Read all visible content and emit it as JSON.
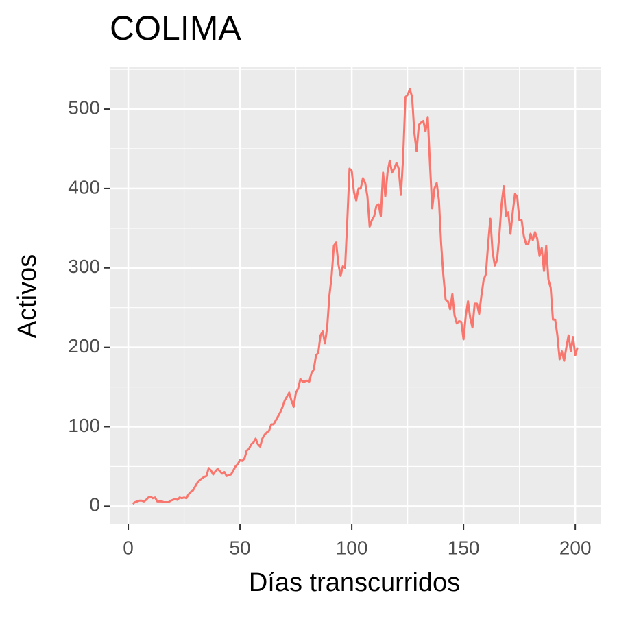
{
  "chart_data": {
    "type": "line",
    "title": "COLIMA",
    "x_label": "Días transcurridos",
    "y_label": "Activos",
    "xlim": [
      -8.3,
      211.3
    ],
    "ylim": [
      -23,
      552.7
    ],
    "xticks": [
      0,
      50,
      100,
      150,
      200
    ],
    "yticks": [
      0,
      100,
      200,
      300,
      400,
      500
    ],
    "xminor": [
      25,
      75,
      125,
      175
    ],
    "yminor": [
      50,
      150,
      250,
      350,
      450,
      550
    ],
    "grid": true,
    "panel_color": "#ebebeb",
    "x": [
      2,
      3,
      4,
      5,
      6,
      7,
      8,
      9,
      10,
      11,
      12,
      13,
      14,
      15,
      16,
      17,
      18,
      19,
      20,
      21,
      22,
      23,
      24,
      25,
      26,
      27,
      28,
      29,
      30,
      31,
      32,
      33,
      34,
      35,
      36,
      37,
      38,
      39,
      40,
      41,
      42,
      43,
      44,
      45,
      46,
      47,
      48,
      49,
      50,
      51,
      52,
      53,
      54,
      55,
      56,
      57,
      58,
      59,
      60,
      61,
      62,
      63,
      64,
      65,
      66,
      67,
      68,
      69,
      70,
      71,
      72,
      73,
      74,
      75,
      76,
      77,
      78,
      79,
      80,
      81,
      82,
      83,
      84,
      85,
      86,
      87,
      88,
      89,
      90,
      91,
      92,
      93,
      94,
      95,
      96,
      97,
      98,
      99,
      100,
      101,
      102,
      103,
      104,
      105,
      106,
      107,
      108,
      109,
      110,
      111,
      112,
      113,
      114,
      115,
      116,
      117,
      118,
      119,
      120,
      121,
      122,
      123,
      124,
      125,
      126,
      127,
      128,
      129,
      130,
      131,
      132,
      133,
      134,
      135,
      136,
      137,
      138,
      139,
      140,
      141,
      142,
      143,
      144,
      145,
      146,
      147,
      148,
      149,
      150,
      151,
      152,
      153,
      154,
      155,
      156,
      157,
      158,
      159,
      160,
      161,
      162,
      163,
      164,
      165,
      166,
      167,
      168,
      169,
      170,
      171,
      172,
      173,
      174,
      175,
      176,
      177,
      178,
      179,
      180,
      181,
      182,
      183,
      184,
      185,
      186,
      187,
      188,
      189,
      190,
      191,
      192,
      193,
      194,
      195,
      196,
      197,
      198,
      199,
      200,
      201
    ],
    "series": [
      {
        "name": "COLIMA",
        "color": "#f8766d",
        "values": [
          3,
          5,
          6,
          7,
          7,
          6,
          8,
          11,
          12,
          10,
          11,
          6,
          6,
          6,
          5,
          5,
          5,
          7,
          8,
          9,
          8,
          11,
          10,
          11,
          10,
          15,
          18,
          20,
          25,
          30,
          33,
          35,
          37,
          38,
          48,
          45,
          40,
          44,
          47,
          44,
          41,
          43,
          38,
          39,
          40,
          45,
          50,
          53,
          58,
          57,
          60,
          70,
          72,
          78,
          80,
          85,
          78,
          75,
          85,
          90,
          93,
          95,
          103,
          103,
          108,
          113,
          118,
          125,
          133,
          138,
          143,
          133,
          125,
          143,
          148,
          160,
          157,
          157,
          158,
          157,
          168,
          172,
          190,
          193,
          215,
          220,
          205,
          225,
          265,
          290,
          328,
          332,
          305,
          290,
          302,
          300,
          360,
          425,
          422,
          395,
          385,
          400,
          400,
          413,
          407,
          390,
          352,
          360,
          365,
          378,
          380,
          365,
          420,
          390,
          420,
          435,
          420,
          425,
          432,
          425,
          392,
          440,
          515,
          518,
          525,
          515,
          470,
          447,
          480,
          483,
          485,
          472,
          490,
          430,
          375,
          400,
          407,
          385,
          330,
          290,
          260,
          258,
          248,
          267,
          240,
          230,
          233,
          232,
          210,
          240,
          258,
          237,
          225,
          255,
          255,
          242,
          265,
          285,
          292,
          330,
          362,
          320,
          303,
          310,
          340,
          380,
          403,
          365,
          370,
          343,
          370,
          393,
          390,
          360,
          360,
          340,
          330,
          330,
          343,
          335,
          345,
          337,
          315,
          325,
          296,
          328,
          285,
          275,
          235,
          235,
          215,
          185,
          195,
          183,
          200,
          215,
          195,
          213,
          190,
          200
        ]
      }
    ]
  }
}
